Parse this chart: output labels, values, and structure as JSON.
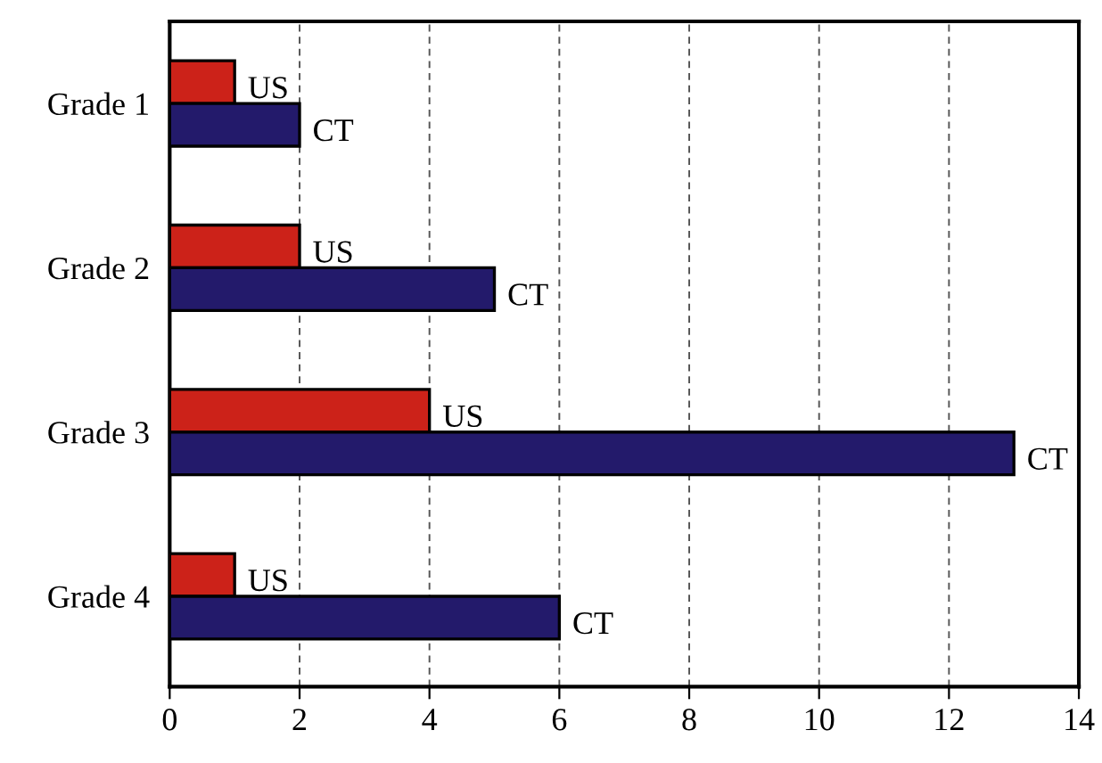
{
  "chart_data": {
    "type": "bar",
    "orientation": "horizontal",
    "categories": [
      "Grade 1",
      "Grade 2",
      "Grade 3",
      "Grade 4"
    ],
    "series": [
      {
        "name": "US",
        "color": "#cc2219",
        "values": [
          1,
          2,
          4,
          1
        ]
      },
      {
        "name": "CT",
        "color": "#231a6b",
        "values": [
          2,
          5,
          13,
          6
        ]
      }
    ],
    "xlim": [
      0,
      14
    ],
    "xticks": [
      0,
      2,
      4,
      6,
      8,
      10,
      12,
      14
    ],
    "grid": "x",
    "legend": false
  }
}
